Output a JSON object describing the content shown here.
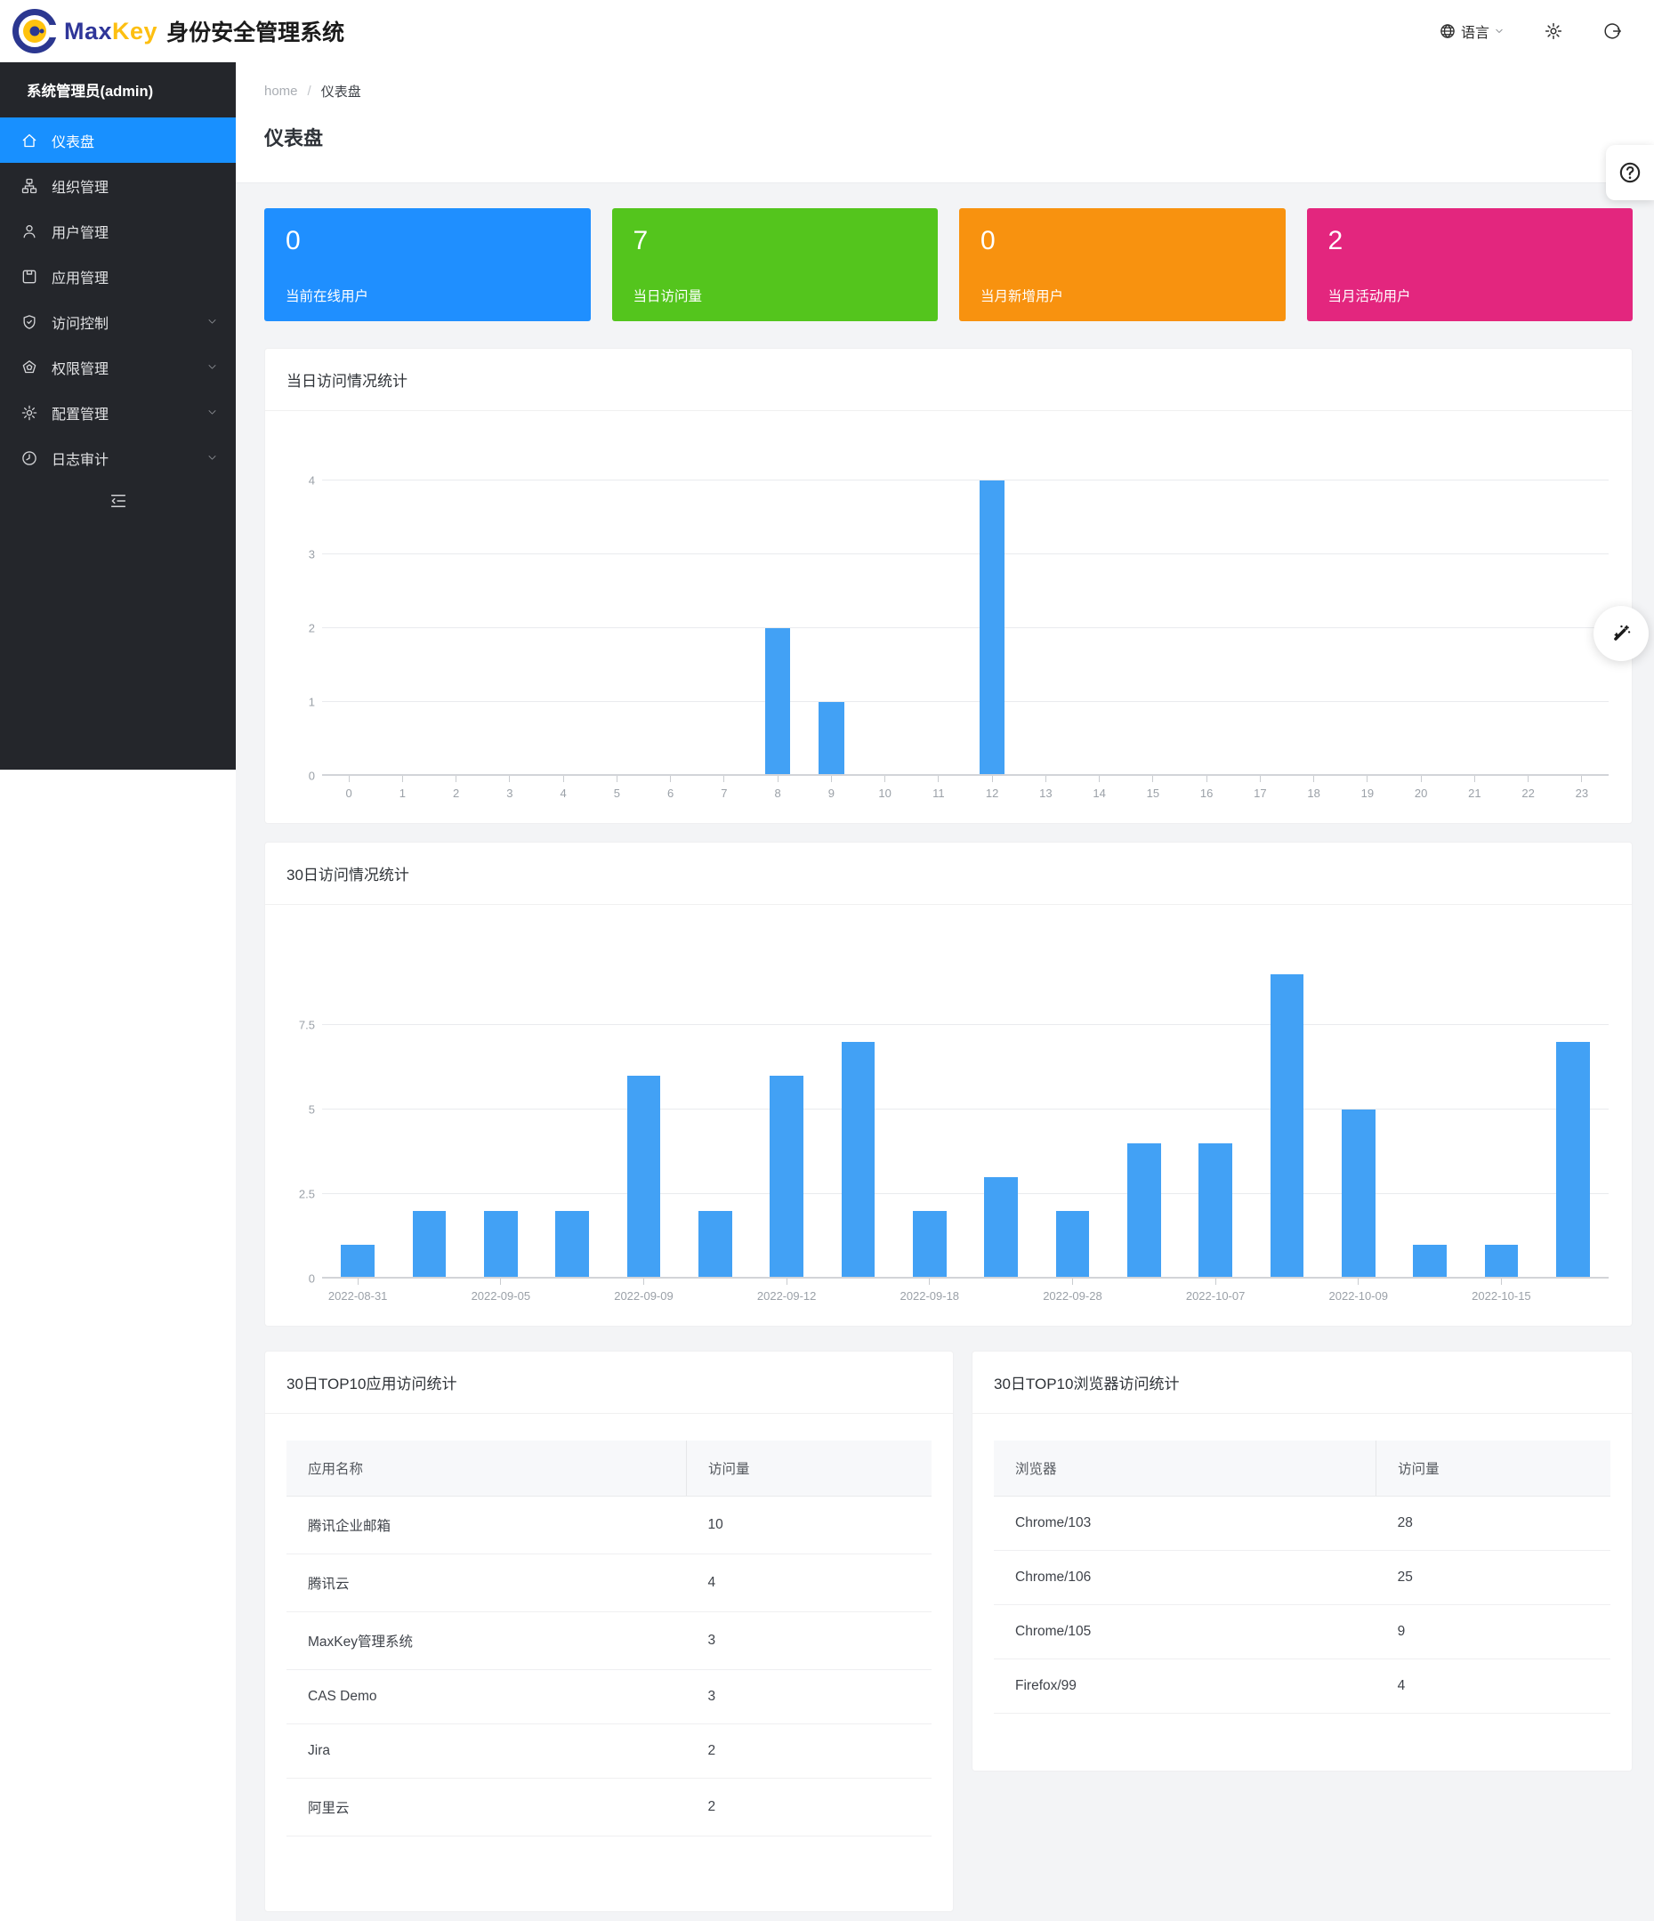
{
  "header": {
    "brand_max": "Max",
    "brand_key": "Key",
    "brand_suffix": "身份安全管理系统",
    "language_label": "语言"
  },
  "sidebar": {
    "user_title": "系统管理员(admin)",
    "items": [
      {
        "id": "dashboard",
        "label": "仪表盘",
        "icon": "home-icon",
        "active": true,
        "expandable": false
      },
      {
        "id": "org",
        "label": "组织管理",
        "icon": "org-icon",
        "active": false,
        "expandable": false
      },
      {
        "id": "user",
        "label": "用户管理",
        "icon": "user-icon",
        "active": false,
        "expandable": false
      },
      {
        "id": "app",
        "label": "应用管理",
        "icon": "app-icon",
        "active": false,
        "expandable": false
      },
      {
        "id": "access",
        "label": "访问控制",
        "icon": "shield-icon",
        "active": false,
        "expandable": true
      },
      {
        "id": "permission",
        "label": "权限管理",
        "icon": "pentagon-icon",
        "active": false,
        "expandable": true
      },
      {
        "id": "config",
        "label": "配置管理",
        "icon": "gear-icon",
        "active": false,
        "expandable": true
      },
      {
        "id": "audit",
        "label": "日志审计",
        "icon": "clock-icon",
        "active": false,
        "expandable": true
      }
    ]
  },
  "breadcrumb": {
    "home": "home",
    "separator": "/",
    "current": "仪表盘"
  },
  "page_title": "仪表盘",
  "stat_cards": [
    {
      "value": "0",
      "label": "当前在线用户",
      "color": "#1f8fff"
    },
    {
      "value": "7",
      "label": "当日访问量",
      "color": "#54c51d"
    },
    {
      "value": "0",
      "label": "当月新增用户",
      "color": "#f8920f"
    },
    {
      "value": "2",
      "label": "当月活动用户",
      "color": "#e3267e"
    }
  ],
  "chart_data": [
    {
      "type": "bar",
      "title": "当日访问情况统计",
      "x_labels": [
        "0",
        "1",
        "2",
        "3",
        "4",
        "5",
        "6",
        "7",
        "8",
        "9",
        "10",
        "11",
        "12",
        "13",
        "14",
        "15",
        "16",
        "17",
        "18",
        "19",
        "20",
        "21",
        "22",
        "23"
      ],
      "values": [
        0,
        0,
        0,
        0,
        0,
        0,
        0,
        0,
        2,
        1,
        0,
        0,
        4,
        0,
        0,
        0,
        0,
        0,
        0,
        0,
        0,
        0,
        0,
        0
      ],
      "yticks": [
        0,
        1,
        2,
        3,
        4
      ],
      "ylim": [
        0,
        4
      ],
      "ymax": 4,
      "bar_color": "#42a1f5",
      "xlabel": "",
      "ylabel": "",
      "grid": true,
      "legend": false
    },
    {
      "type": "bar",
      "title": "30日访问情况统计",
      "x_labels": [
        "2022-08-31",
        "",
        "2022-09-05",
        "",
        "2022-09-09",
        "",
        "2022-09-12",
        "",
        "2022-09-18",
        "",
        "2022-09-28",
        "",
        "2022-10-07",
        "",
        "2022-10-09",
        "",
        "2022-10-15",
        ""
      ],
      "values": [
        1,
        2,
        2,
        2,
        6,
        2,
        6,
        7,
        2,
        3,
        2,
        4,
        4,
        9,
        5,
        1,
        1,
        7
      ],
      "yticks": [
        0,
        2.5,
        5,
        7.5
      ],
      "ylim": [
        0,
        10
      ],
      "ymax": 10,
      "bar_color": "#42a1f5",
      "xlabel": "",
      "ylabel": "",
      "grid": true,
      "legend": false
    }
  ],
  "tables": [
    {
      "title": "30日TOP10应用访问统计",
      "headers": [
        "应用名称",
        "访问量"
      ],
      "rows": [
        [
          "腾讯企业邮箱",
          "10"
        ],
        [
          "腾讯云",
          "4"
        ],
        [
          "MaxKey管理系统",
          "3"
        ],
        [
          "CAS Demo",
          "3"
        ],
        [
          "Jira",
          "2"
        ],
        [
          "阿里云",
          "2"
        ]
      ]
    },
    {
      "title": "30日TOP10浏览器访问统计",
      "headers": [
        "浏览器",
        "访问量"
      ],
      "rows": [
        [
          "Chrome/103",
          "28"
        ],
        [
          "Chrome/106",
          "25"
        ],
        [
          "Chrome/105",
          "9"
        ],
        [
          "Firefox/99",
          "4"
        ]
      ]
    }
  ]
}
